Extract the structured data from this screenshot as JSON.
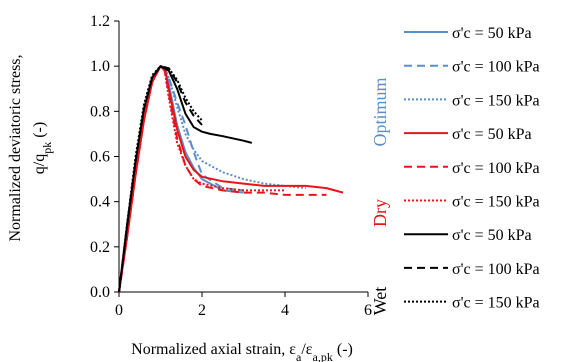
{
  "chart_data": {
    "type": "line",
    "xlabel": "Normalized axial strain, εa/εa,pk (-)",
    "xlabel_parts": {
      "main": "Normalized axial strain, ε",
      "sub1": "a",
      "slash": "/ε",
      "sub2": "a,pk",
      "tail": " (-)"
    },
    "ylabel_line1": "Normalized deviatoric stress,",
    "ylabel_line2_parts": {
      "main": "q/q",
      "sub": "pk",
      "tail": " (-)"
    },
    "xlim": [
      0,
      6
    ],
    "ylim": [
      0,
      1.2
    ],
    "xticks": [
      "0",
      "2",
      "4",
      "6"
    ],
    "yticks": [
      "0.0",
      "0.2",
      "0.4",
      "0.6",
      "0.8",
      "1.0",
      "1.2"
    ],
    "grid": false,
    "legend_position": "right",
    "groups": [
      {
        "label": "Optimum",
        "color": "#5b8ec9"
      },
      {
        "label": "Dry",
        "color": "#e8141b"
      },
      {
        "label": "Wet",
        "color": "#000000"
      }
    ],
    "series": [
      {
        "name": "σ'c = 50 kPa",
        "group": 0,
        "color": "#5b8ec9",
        "dash": "solid",
        "x": [
          0,
          0.2,
          0.4,
          0.6,
          0.8,
          1.0,
          1.1,
          1.2,
          1.4,
          1.6,
          1.8,
          2.0,
          2.5,
          3.0
        ],
        "y": [
          0,
          0.3,
          0.57,
          0.8,
          0.95,
          1.0,
          0.99,
          0.92,
          0.74,
          0.62,
          0.55,
          0.5,
          0.45,
          0.44
        ]
      },
      {
        "name": "σ'c = 100 kPa",
        "group": 0,
        "color": "#5b8ec9",
        "dash": "dash",
        "x": [
          0,
          0.2,
          0.4,
          0.6,
          0.8,
          1.0,
          1.1,
          1.2,
          1.4,
          1.6,
          1.8,
          2.0,
          2.5,
          3.0
        ],
        "y": [
          0,
          0.28,
          0.55,
          0.78,
          0.94,
          1.0,
          0.99,
          0.95,
          0.84,
          0.74,
          0.62,
          0.52,
          0.46,
          0.45
        ]
      },
      {
        "name": "σ'c = 150 kPa",
        "group": 0,
        "color": "#5b8ec9",
        "dash": "dot",
        "x": [
          0,
          0.2,
          0.4,
          0.6,
          0.8,
          1.0,
          1.1,
          1.2,
          1.4,
          1.6,
          1.8,
          2.0,
          2.5,
          3.0,
          3.5,
          4.0,
          4.5
        ],
        "y": [
          0,
          0.28,
          0.55,
          0.78,
          0.94,
          1.0,
          0.99,
          0.95,
          0.82,
          0.7,
          0.63,
          0.58,
          0.53,
          0.5,
          0.48,
          0.47,
          0.46
        ]
      },
      {
        "name": "σ'c = 50 kPa",
        "group": 1,
        "color": "#e8141b",
        "dash": "solid",
        "x": [
          0,
          0.2,
          0.4,
          0.6,
          0.8,
          1.0,
          1.1,
          1.2,
          1.4,
          1.6,
          1.8,
          2.0,
          2.5,
          3.0,
          3.5,
          4.0,
          4.5,
          5.0,
          5.4
        ],
        "y": [
          0,
          0.25,
          0.52,
          0.76,
          0.93,
          1.0,
          0.99,
          0.9,
          0.72,
          0.6,
          0.54,
          0.51,
          0.49,
          0.48,
          0.47,
          0.47,
          0.47,
          0.46,
          0.44
        ]
      },
      {
        "name": "σ'c = 100 kPa",
        "group": 1,
        "color": "#e8141b",
        "dash": "dash",
        "x": [
          0,
          0.2,
          0.4,
          0.6,
          0.8,
          1.0,
          1.1,
          1.2,
          1.4,
          1.6,
          1.8,
          2.0,
          2.5,
          3.0,
          3.5,
          4.0,
          4.5,
          5.0
        ],
        "y": [
          0,
          0.25,
          0.52,
          0.76,
          0.93,
          1.0,
          0.98,
          0.88,
          0.68,
          0.56,
          0.5,
          0.47,
          0.45,
          0.44,
          0.44,
          0.43,
          0.43,
          0.43
        ]
      },
      {
        "name": "σ'c = 150 kPa",
        "group": 1,
        "color": "#e8141b",
        "dash": "dot",
        "x": [
          0,
          0.2,
          0.4,
          0.6,
          0.8,
          1.0,
          1.1,
          1.2,
          1.4,
          1.6,
          1.8,
          2.0,
          2.5,
          3.0,
          3.5,
          4.0
        ],
        "y": [
          0,
          0.25,
          0.52,
          0.76,
          0.93,
          1.0,
          0.98,
          0.86,
          0.66,
          0.56,
          0.5,
          0.48,
          0.46,
          0.45,
          0.45,
          0.45
        ]
      },
      {
        "name": "σ'c = 50 kPa",
        "group": 2,
        "color": "#000000",
        "dash": "solid",
        "x": [
          0,
          0.2,
          0.4,
          0.6,
          0.8,
          1.0,
          1.2,
          1.4,
          1.6,
          1.8,
          2.0,
          2.2,
          2.5,
          3.0,
          3.2
        ],
        "y": [
          0,
          0.3,
          0.58,
          0.81,
          0.95,
          1.0,
          0.98,
          0.9,
          0.79,
          0.73,
          0.71,
          0.7,
          0.69,
          0.67,
          0.66
        ]
      },
      {
        "name": "σ'c = 100 kPa",
        "group": 2,
        "color": "#000000",
        "dash": "dash",
        "x": [
          0,
          0.2,
          0.4,
          0.6,
          0.8,
          1.0,
          1.2,
          1.4,
          1.6,
          1.8,
          2.0
        ],
        "y": [
          0,
          0.3,
          0.58,
          0.81,
          0.95,
          1.0,
          0.99,
          0.93,
          0.84,
          0.78,
          0.74
        ]
      },
      {
        "name": "σ'c = 150 kPa",
        "group": 2,
        "color": "#000000",
        "dash": "dot",
        "x": [
          0,
          0.2,
          0.4,
          0.6,
          0.8,
          1.0,
          1.2,
          1.4,
          1.6,
          1.8,
          2.0
        ],
        "y": [
          0,
          0.31,
          0.6,
          0.83,
          0.96,
          1.0,
          0.99,
          0.94,
          0.86,
          0.8,
          0.76
        ]
      }
    ]
  }
}
